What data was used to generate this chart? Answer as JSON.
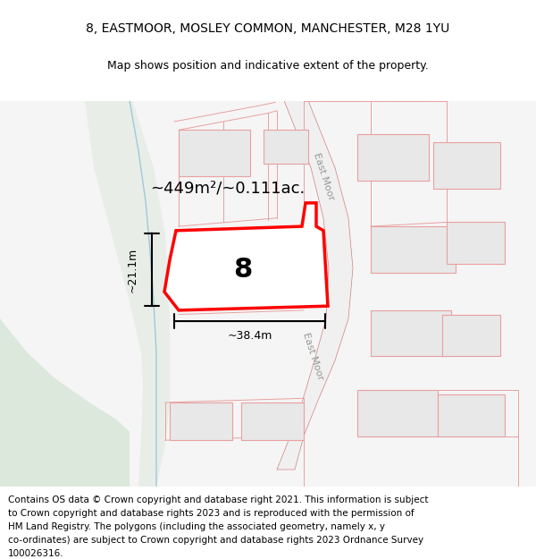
{
  "title_line1": "8, EASTMOOR, MOSLEY COMMON, MANCHESTER, M28 1YU",
  "title_line2": "Map shows position and indicative extent of the property.",
  "area_label": "~449m²/~0.111ac.",
  "number_label": "8",
  "dim_width": "~38.4m",
  "dim_height": "~21.1m",
  "road_label_upper": "East Moor",
  "road_label_lower": "East Moor",
  "background_map_color": "#f5f5f5",
  "green_area_color": "#dce8dc",
  "building_fill": "#e8e8e8",
  "building_stroke": "#e8a0a0",
  "highlight_polygon_color": "#ff0000",
  "highlight_polygon_fill": "#ffffff",
  "road_stroke": "#d08080",
  "title_fontsize": 10,
  "subtitle_fontsize": 9,
  "footer_fontsize": 7.5,
  "footer_lines": [
    "Contains OS data © Crown copyright and database right 2021. This information is subject",
    "to Crown copyright and database rights 2023 and is reproduced with the permission of",
    "HM Land Registry. The polygons (including the associated geometry, namely x, y",
    "co-ordinates) are subject to Crown copyright and database rights 2023 Ordnance Survey",
    "100026316."
  ]
}
